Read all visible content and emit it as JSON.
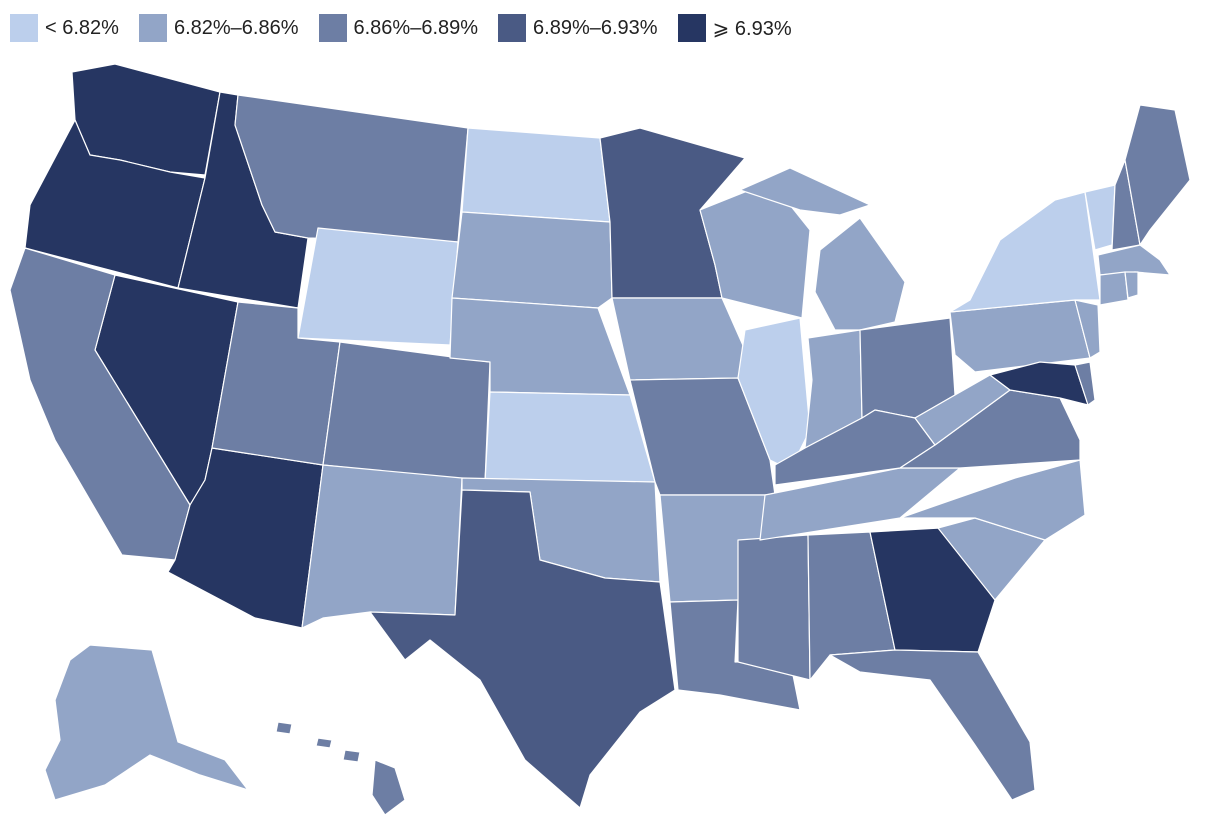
{
  "legend": {
    "bins": [
      {
        "label": "< 6.82%",
        "color": "#bccfec"
      },
      {
        "label": "6.82%–6.86%",
        "color": "#92a5c7"
      },
      {
        "label": "6.86%–6.89%",
        "color": "#6d7ea4"
      },
      {
        "label": "6.89%–6.93%",
        "color": "#4a5a84"
      },
      {
        "label": "⩾ 6.93%",
        "color": "#263662"
      }
    ]
  },
  "states": [
    {
      "id": "WA",
      "bin": 4
    },
    {
      "id": "OR",
      "bin": 4
    },
    {
      "id": "ID",
      "bin": 4
    },
    {
      "id": "NV",
      "bin": 4
    },
    {
      "id": "AZ",
      "bin": 4
    },
    {
      "id": "GA",
      "bin": 4
    },
    {
      "id": "MD",
      "bin": 4
    },
    {
      "id": "MN",
      "bin": 3
    },
    {
      "id": "TX",
      "bin": 3
    },
    {
      "id": "CA",
      "bin": 2
    },
    {
      "id": "MT",
      "bin": 2
    },
    {
      "id": "UT",
      "bin": 2
    },
    {
      "id": "CO",
      "bin": 2
    },
    {
      "id": "MO",
      "bin": 2
    },
    {
      "id": "LA",
      "bin": 2
    },
    {
      "id": "MS",
      "bin": 2
    },
    {
      "id": "AL",
      "bin": 2
    },
    {
      "id": "FL",
      "bin": 2
    },
    {
      "id": "OH",
      "bin": 2
    },
    {
      "id": "KY",
      "bin": 2
    },
    {
      "id": "VA",
      "bin": 2
    },
    {
      "id": "ME",
      "bin": 2
    },
    {
      "id": "NH",
      "bin": 2
    },
    {
      "id": "DE",
      "bin": 2
    },
    {
      "id": "HI",
      "bin": 2
    },
    {
      "id": "SD",
      "bin": 1
    },
    {
      "id": "NE",
      "bin": 1
    },
    {
      "id": "IA",
      "bin": 1
    },
    {
      "id": "WI",
      "bin": 1
    },
    {
      "id": "MI",
      "bin": 1
    },
    {
      "id": "IN",
      "bin": 1
    },
    {
      "id": "WV",
      "bin": 1
    },
    {
      "id": "PA",
      "bin": 1
    },
    {
      "id": "NJ",
      "bin": 1
    },
    {
      "id": "NC",
      "bin": 1
    },
    {
      "id": "SC",
      "bin": 1
    },
    {
      "id": "TN",
      "bin": 1
    },
    {
      "id": "AR",
      "bin": 1
    },
    {
      "id": "OK",
      "bin": 1
    },
    {
      "id": "NM",
      "bin": 1
    },
    {
      "id": "MA",
      "bin": 1
    },
    {
      "id": "CT",
      "bin": 1
    },
    {
      "id": "RI",
      "bin": 1
    },
    {
      "id": "AK",
      "bin": 1
    },
    {
      "id": "ND",
      "bin": 0
    },
    {
      "id": "WY",
      "bin": 0
    },
    {
      "id": "KS",
      "bin": 0
    },
    {
      "id": "IL",
      "bin": 0
    },
    {
      "id": "NY",
      "bin": 0
    },
    {
      "id": "VT",
      "bin": 0
    }
  ]
}
